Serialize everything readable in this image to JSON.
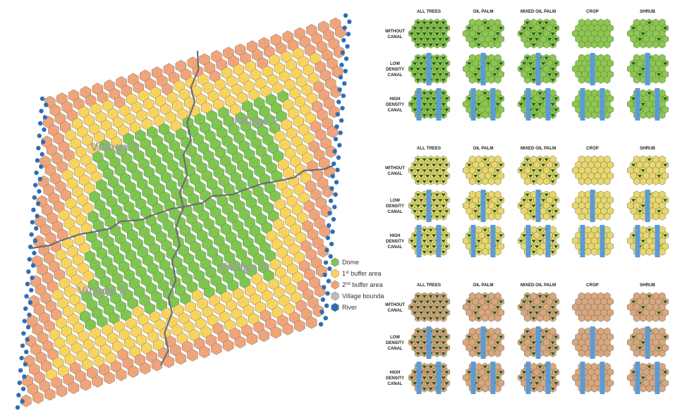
{
  "colors": {
    "dome": "#7ec64f",
    "buffer1": "#f8d35e",
    "buffer2": "#f0a47a",
    "boundary": "#6e6e6e",
    "river": "#2f6db5",
    "canal": "#5b9bd5",
    "hex_stroke": "#7a7a7a",
    "tree_dark": "#1f5f1a",
    "panel_bg_1": "#8cc84b",
    "panel_bg_2": "#e8d86a",
    "panel_bg_3": "#d9a77c"
  },
  "map": {
    "villages": [
      {
        "id": "v1",
        "label": "Village 1"
      },
      {
        "id": "v2",
        "label": "Village 2"
      },
      {
        "id": "v3",
        "label": "Village 3"
      },
      {
        "id": "v4",
        "label": "Village 4"
      }
    ],
    "legend": [
      {
        "key": "dome",
        "label": "Dome",
        "sup": "",
        "after": ""
      },
      {
        "key": "buffer1",
        "label": "1",
        "sup": "st",
        "after": " buffer area"
      },
      {
        "key": "buffer2",
        "label": "2",
        "sup": "nd",
        "after": " buffer area"
      },
      {
        "key": "boundary",
        "label": "Village boundary",
        "sup": "",
        "after": ""
      },
      {
        "key": "river",
        "label": "River",
        "sup": "",
        "after": ""
      }
    ]
  },
  "grid": {
    "columns": [
      "ALL TREES",
      "OIL PALM",
      "MIXED OIL PALM",
      "CROP",
      "SHRUB"
    ],
    "rows": [
      [
        "WITHOUT",
        "CANAL"
      ],
      [
        "LOW",
        "DENSITY",
        "CANAL"
      ],
      [
        "HIGH",
        "DENSITY",
        "CANAL"
      ]
    ],
    "sections": [
      {
        "bg_key": "panel_bg_1"
      },
      {
        "bg_key": "panel_bg_2"
      },
      {
        "bg_key": "panel_bg_3"
      }
    ],
    "canals_per_row": [
      0,
      1,
      2
    ],
    "tree_density": [
      1.0,
      0.35,
      0.6,
      0.0,
      0.25
    ]
  }
}
